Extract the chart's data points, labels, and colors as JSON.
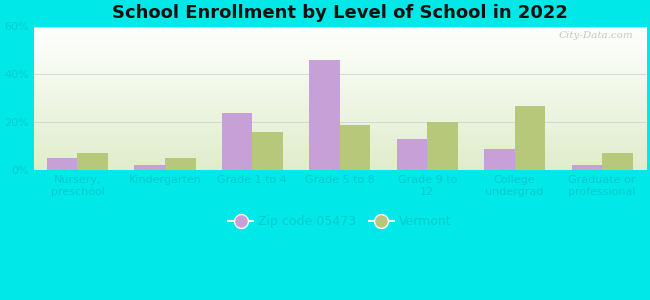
{
  "title": "School Enrollment by Level of School in 2022",
  "categories": [
    "Nursery,\npreschool",
    "Kindergarten",
    "Grade 1 to 4",
    "Grade 5 to 8",
    "Grade 9 to\n12",
    "College\nundergrad",
    "Graduate or\nprofessional"
  ],
  "zip_values": [
    5,
    2,
    24,
    46,
    13,
    9,
    2
  ],
  "vt_values": [
    7,
    5,
    16,
    19,
    20,
    27,
    7
  ],
  "zip_color": "#c8a0d8",
  "vt_color": "#b8c87a",
  "background_color": "#00e8e8",
  "ylim": [
    0,
    60
  ],
  "yticks": [
    0,
    20,
    40,
    60
  ],
  "ytick_labels": [
    "0%",
    "20%",
    "40%",
    "60%"
  ],
  "legend_zip_label": "Zip code 05473",
  "legend_vt_label": "Vermont",
  "bar_width": 0.35,
  "title_fontsize": 13,
  "tick_fontsize": 8,
  "axis_label_color": "#00cccc",
  "legend_fontsize": 9,
  "watermark": "City-Data.com"
}
